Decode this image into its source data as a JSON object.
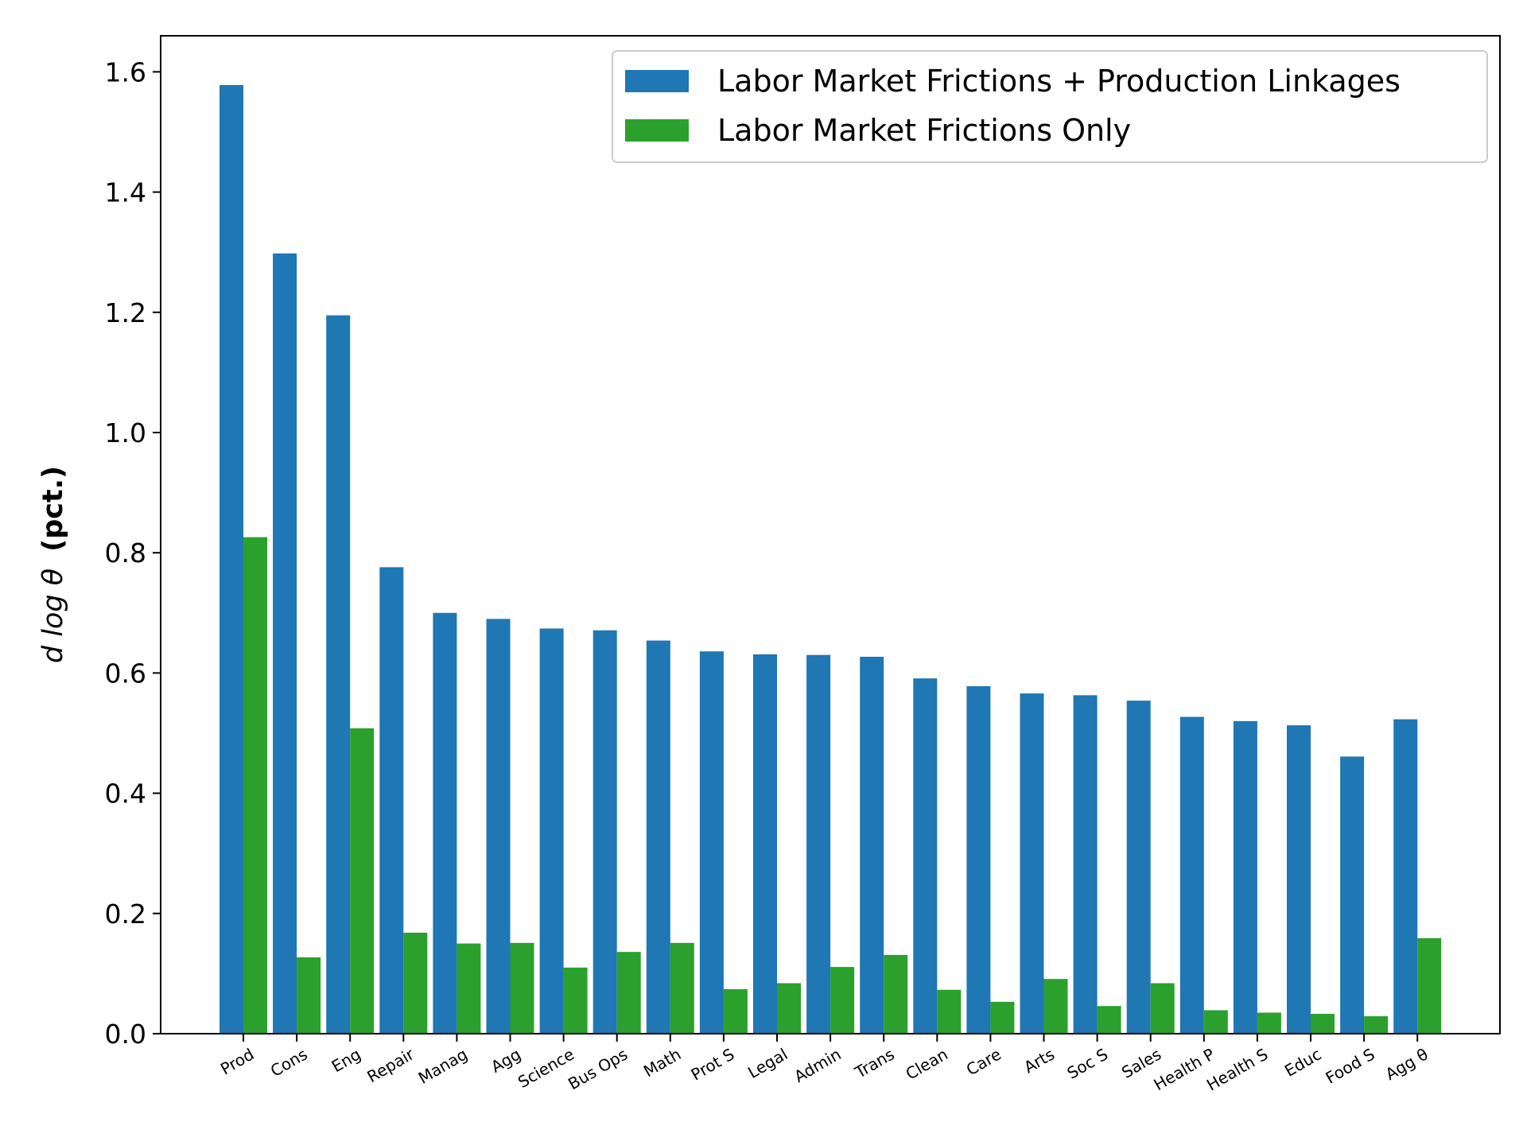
{
  "chart_data": {
    "type": "bar",
    "title": "",
    "xlabel": "",
    "ylabel": {
      "math": "d log θ",
      "text": "(pct.)"
    },
    "ylim": [
      0,
      1.66
    ],
    "yticks": [
      "0.0",
      "0.2",
      "0.4",
      "0.6",
      "0.8",
      "1.0",
      "1.2",
      "1.4",
      "1.6"
    ],
    "grid": false,
    "legend_position": "top-right",
    "categories": [
      "Prod",
      "Cons",
      "Eng",
      "Repair",
      "Manag",
      "Agg",
      "Science",
      "Bus Ops",
      "Math",
      "Prot S",
      "Legal",
      "Admin",
      "Trans",
      "Clean",
      "Care",
      "Arts",
      "Soc S",
      "Sales",
      "Health P",
      "Health S",
      "Educ",
      "Food S",
      "Agg θ"
    ],
    "series": [
      {
        "name": "Labor Market Frictions + Production Linkages",
        "color": "#1f77b4",
        "values": [
          1.578,
          1.298,
          1.195,
          0.776,
          0.7,
          0.69,
          0.674,
          0.671,
          0.654,
          0.636,
          0.631,
          0.63,
          0.627,
          0.591,
          0.578,
          0.566,
          0.563,
          0.554,
          0.527,
          0.52,
          0.513,
          0.461,
          0.523
        ]
      },
      {
        "name": "Labor Market Frictions Only",
        "color": "#2ca02c",
        "values": [
          0.826,
          0.127,
          0.508,
          0.168,
          0.15,
          0.151,
          0.11,
          0.136,
          0.151,
          0.074,
          0.084,
          0.111,
          0.131,
          0.073,
          0.053,
          0.091,
          0.046,
          0.084,
          0.039,
          0.035,
          0.033,
          0.029,
          0.159
        ]
      }
    ]
  }
}
